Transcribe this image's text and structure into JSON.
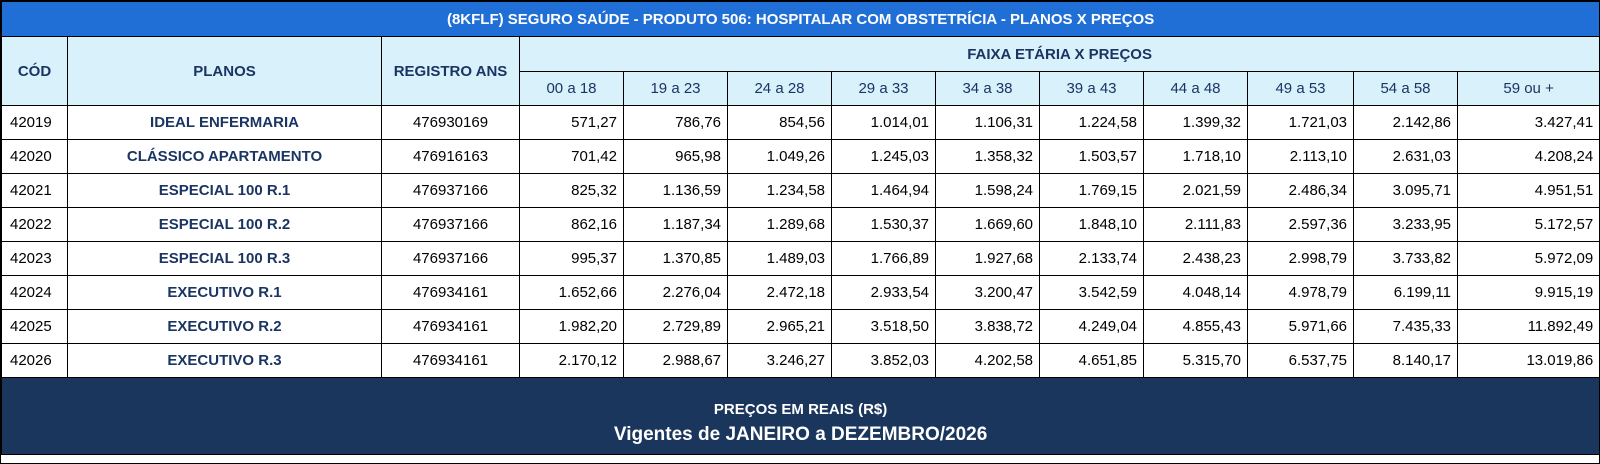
{
  "title": "(8KFLF) SEGURO SAÚDE - PRODUTO 506: HOSPITALAR COM OBSTETRÍCIA - PLANOS X PREÇOS",
  "headers": {
    "code": "CÓD",
    "plans": "PLANOS",
    "registry": "REGISTRO ANS",
    "age_group": "FAIXA ETÁRIA X PREÇOS"
  },
  "age_ranges": [
    "00 a 18",
    "19 a 23",
    "24 a 28",
    "29 a 33",
    "34 a 38",
    "39 a 43",
    "44 a 48",
    "49 a 53",
    "54 a 58",
    "59 ou +"
  ],
  "rows": [
    {
      "code": "42019",
      "plan": "IDEAL ENFERMARIA",
      "registry": "476930169",
      "prices": [
        "571,27",
        "786,76",
        "854,56",
        "1.014,01",
        "1.106,31",
        "1.224,58",
        "1.399,32",
        "1.721,03",
        "2.142,86",
        "3.427,41"
      ]
    },
    {
      "code": "42020",
      "plan": "CLÁSSICO APARTAMENTO",
      "registry": "476916163",
      "prices": [
        "701,42",
        "965,98",
        "1.049,26",
        "1.245,03",
        "1.358,32",
        "1.503,57",
        "1.718,10",
        "2.113,10",
        "2.631,03",
        "4.208,24"
      ]
    },
    {
      "code": "42021",
      "plan": "ESPECIAL 100 R.1",
      "registry": "476937166",
      "prices": [
        "825,32",
        "1.136,59",
        "1.234,58",
        "1.464,94",
        "1.598,24",
        "1.769,15",
        "2.021,59",
        "2.486,34",
        "3.095,71",
        "4.951,51"
      ]
    },
    {
      "code": "42022",
      "plan": "ESPECIAL 100 R.2",
      "registry": "476937166",
      "prices": [
        "862,16",
        "1.187,34",
        "1.289,68",
        "1.530,37",
        "1.669,60",
        "1.848,10",
        "2.111,83",
        "2.597,36",
        "3.233,95",
        "5.172,57"
      ]
    },
    {
      "code": "42023",
      "plan": "ESPECIAL 100 R.3",
      "registry": "476937166",
      "prices": [
        "995,37",
        "1.370,85",
        "1.489,03",
        "1.766,89",
        "1.927,68",
        "2.133,74",
        "2.438,23",
        "2.998,79",
        "3.733,82",
        "5.972,09"
      ]
    },
    {
      "code": "42024",
      "plan": "EXECUTIVO R.1",
      "registry": "476934161",
      "prices": [
        "1.652,66",
        "2.276,04",
        "2.472,18",
        "2.933,54",
        "3.200,47",
        "3.542,59",
        "4.048,14",
        "4.978,79",
        "6.199,11",
        "9.915,19"
      ]
    },
    {
      "code": "42025",
      "plan": "EXECUTIVO R.2",
      "registry": "476934161",
      "prices": [
        "1.982,20",
        "2.729,89",
        "2.965,21",
        "3.518,50",
        "3.838,72",
        "4.249,04",
        "4.855,43",
        "5.971,66",
        "7.435,33",
        "11.892,49"
      ]
    },
    {
      "code": "42026",
      "plan": "EXECUTIVO R.3",
      "registry": "476934161",
      "prices": [
        "2.170,12",
        "2.988,67",
        "3.246,27",
        "3.852,03",
        "4.202,58",
        "4.651,85",
        "5.315,70",
        "6.537,75",
        "8.140,17",
        "13.019,86"
      ]
    }
  ],
  "footer": {
    "line1": "PREÇOS EM REAIS (R$)",
    "line2": "Vigentes de JANEIRO a DEZEMBRO/2026"
  },
  "colors": {
    "title_bg": "#1f6fd6",
    "header_bg": "#d8f1fb",
    "plan_text": "#1b3563",
    "footer_bg": "#1b365d"
  }
}
